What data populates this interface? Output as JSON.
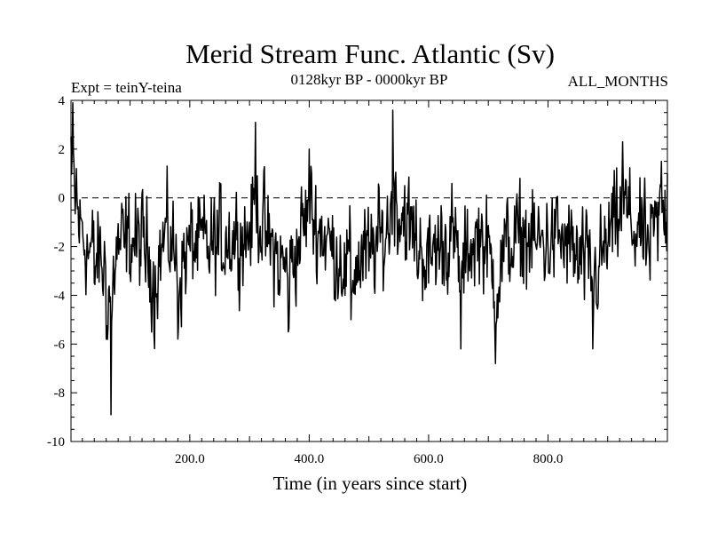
{
  "chart_data": {
    "type": "line",
    "title": "Merid Stream Func. Atlantic (Sv)",
    "subtitle_left": "Expt = teinY-teina",
    "subtitle_center": "0128kyr BP - 0000kyr BP",
    "subtitle_right": "ALL_MONTHS",
    "xlabel": "Time (in years since start)",
    "ylabel": "",
    "xlim": [
      1,
      1000
    ],
    "ylim": [
      -10,
      4
    ],
    "x_tick_values": [
      200,
      400,
      600,
      800
    ],
    "x_tick_labels": [
      "200.0",
      "400.0",
      "600.0",
      "800.0"
    ],
    "y_tick_values": [
      4,
      2,
      0,
      -2,
      -4,
      -6,
      -8,
      -10
    ],
    "y_tick_labels": [
      "4",
      "2",
      "0",
      "-2",
      "-4",
      "-6",
      "-8",
      "-10"
    ],
    "reference_line": {
      "y": 0,
      "style": "dashed"
    },
    "series": [
      {
        "name": "Merid Stream Func. Atlantic",
        "x_start": 1,
        "x_step": 1,
        "count": 1000,
        "key_points": [
          [
            1,
            2.5
          ],
          [
            4,
            3.9
          ],
          [
            10,
            1.2
          ],
          [
            20,
            -1.0
          ],
          [
            30,
            -2.5
          ],
          [
            40,
            -3.5
          ],
          [
            55,
            -4.0
          ],
          [
            60,
            -5.8
          ],
          [
            68,
            -8.9
          ],
          [
            75,
            -3.0
          ],
          [
            90,
            -2.0
          ],
          [
            110,
            -1.5
          ],
          [
            130,
            -3.0
          ],
          [
            140,
            -5.6
          ],
          [
            160,
            -1.0
          ],
          [
            175,
            -3.0
          ],
          [
            180,
            -5.8
          ],
          [
            200,
            -2.0
          ],
          [
            230,
            -2.5
          ],
          [
            260,
            -1.5
          ],
          [
            280,
            -1.0
          ],
          [
            300,
            -1.0
          ],
          [
            310,
            3.1
          ],
          [
            330,
            -2.0
          ],
          [
            350,
            -4.0
          ],
          [
            365,
            -5.5
          ],
          [
            380,
            -2.0
          ],
          [
            400,
            2.0
          ],
          [
            420,
            -1.0
          ],
          [
            440,
            -2.5
          ],
          [
            460,
            -4.0
          ],
          [
            470,
            -5.0
          ],
          [
            500,
            -3.0
          ],
          [
            530,
            -1.0
          ],
          [
            540,
            3.6
          ],
          [
            560,
            0.5
          ],
          [
            580,
            -2.0
          ],
          [
            600,
            -3.5
          ],
          [
            620,
            -2.0
          ],
          [
            640,
            -1.0
          ],
          [
            654,
            -6.2
          ],
          [
            670,
            -2.0
          ],
          [
            690,
            -1.0
          ],
          [
            712,
            -6.8
          ],
          [
            730,
            -2.0
          ],
          [
            760,
            -1.5
          ],
          [
            780,
            -2.0
          ],
          [
            820,
            -1.5
          ],
          [
            850,
            -3.5
          ],
          [
            875,
            -6.2
          ],
          [
            900,
            -2.0
          ],
          [
            925,
            2.3
          ],
          [
            950,
            -1.0
          ],
          [
            970,
            -2.5
          ],
          [
            990,
            1.5
          ],
          [
            1000,
            1.0
          ]
        ],
        "mean": -1.8,
        "noise_amplitude": 1.5
      }
    ]
  }
}
